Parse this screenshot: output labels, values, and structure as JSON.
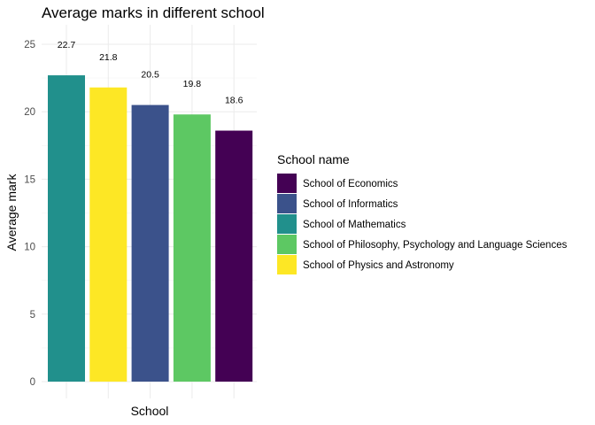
{
  "chart_data": {
    "type": "bar",
    "title": "Average marks in different school",
    "xlabel": "School",
    "ylabel": "Average mark",
    "ylim": [
      0,
      25.5
    ],
    "yticks": [
      0,
      5,
      10,
      15,
      20,
      25
    ],
    "grid": true,
    "legend_position": "right",
    "legend_title": "School name",
    "legend": [
      {
        "name": "School of Economics",
        "color": "#440154"
      },
      {
        "name": "School of Informatics",
        "color": "#3B528B"
      },
      {
        "name": "School of Mathematics",
        "color": "#21908C"
      },
      {
        "name": "School of Philosophy, Psychology and Language Sciences",
        "color": "#5DC863"
      },
      {
        "name": "School of Physics and Astronomy",
        "color": "#FDE725"
      }
    ],
    "bars": [
      {
        "school": "School of Mathematics",
        "value": 22.7,
        "label": "22.7",
        "color": "#21908C"
      },
      {
        "school": "School of Physics and Astronomy",
        "value": 21.8,
        "label": "21.8",
        "color": "#FDE725"
      },
      {
        "school": "School of Informatics",
        "value": 20.5,
        "label": "20.5",
        "color": "#3B528B"
      },
      {
        "school": "School of Philosophy, Psychology and Language Sciences",
        "value": 19.8,
        "label": "19.8",
        "color": "#5DC863"
      },
      {
        "school": "School of Economics",
        "value": 18.6,
        "label": "18.6",
        "color": "#440154"
      }
    ]
  }
}
